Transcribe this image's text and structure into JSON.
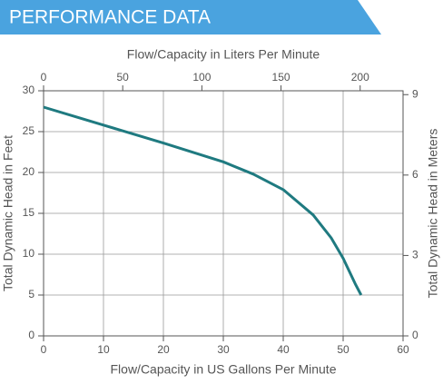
{
  "chart_data": {
    "type": "line",
    "title": "PERFORMANCE DATA",
    "xlabel": "Flow/Capacity in US Gallons Per Minute",
    "ylabel": "Total Dynamic Head in Feet",
    "x2label": "Flow/Capacity in Liters Per Minute",
    "y2label": "Total Dynamic Head in Meters",
    "x": [
      0,
      10,
      20,
      30,
      35,
      40,
      45,
      48,
      50,
      52,
      53
    ],
    "values": [
      28,
      25.8,
      23.6,
      21.3,
      19.8,
      17.9,
      14.8,
      12,
      9.5,
      6.4,
      5
    ],
    "color": "#1f7a80",
    "xlim": [
      0,
      60
    ],
    "xticks": [
      0,
      10,
      20,
      30,
      40,
      50,
      60
    ],
    "ylim": [
      0,
      30
    ],
    "yticks": [
      0,
      5,
      10,
      15,
      20,
      25,
      30
    ],
    "x2lim": [
      0,
      227.1
    ],
    "x2ticks": [
      0,
      50,
      100,
      150,
      200
    ],
    "y2lim": [
      0,
      9.144
    ],
    "y2ticks": [
      0,
      3,
      6,
      9
    ],
    "grid": true,
    "header_color": "#4aa3df"
  }
}
